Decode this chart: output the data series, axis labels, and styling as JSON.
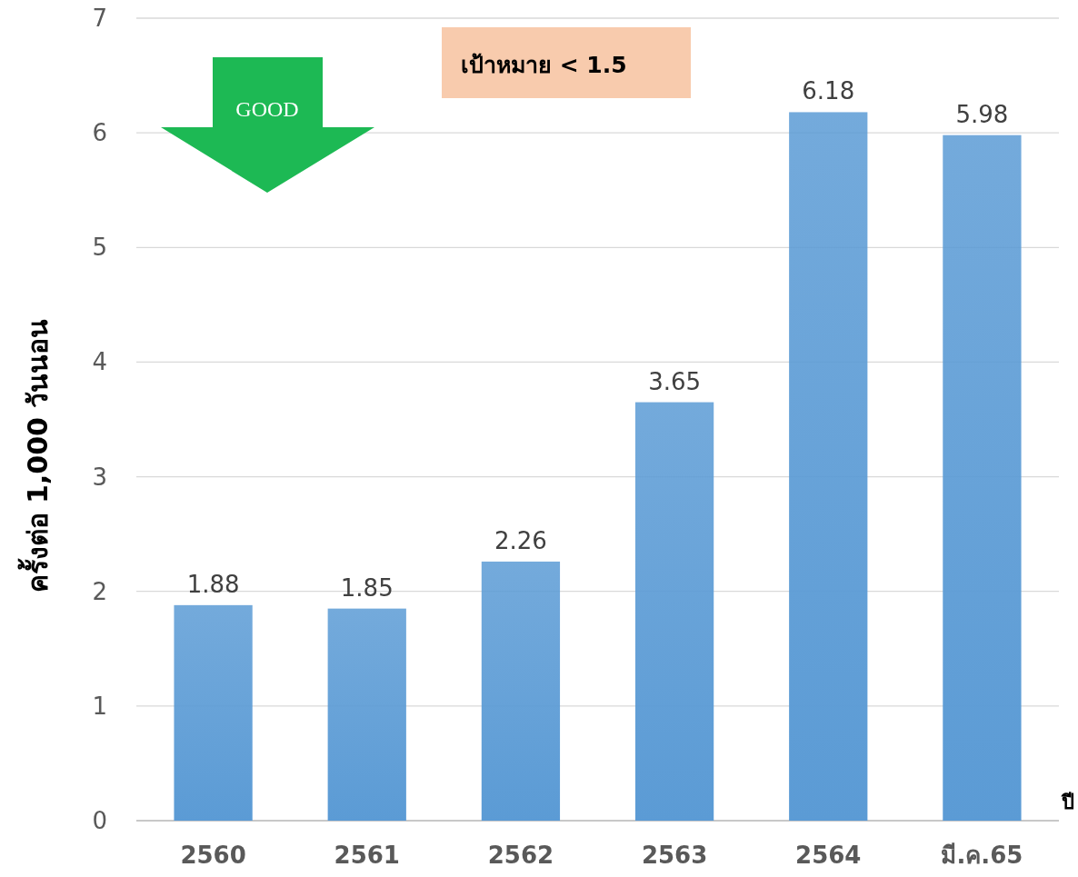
{
  "chart_data": {
    "type": "bar",
    "categories": [
      "2560",
      "2561",
      "2562",
      "2563",
      "2564",
      "มี.ค.65"
    ],
    "values": [
      1.88,
      1.85,
      2.26,
      3.65,
      6.18,
      5.98
    ],
    "color": "#5b9bd5",
    "ylim": [
      0,
      7
    ],
    "yticks": [
      0,
      1,
      2,
      3,
      4,
      5,
      6,
      7
    ],
    "grid": "y",
    "data_labels": true,
    "ylabel": "ครั้งต่อ 1,000 วันนอน",
    "xlabel": "ปี",
    "annotations": [
      "เป้าหมาย < 1.5",
      "GOOD"
    ]
  }
}
